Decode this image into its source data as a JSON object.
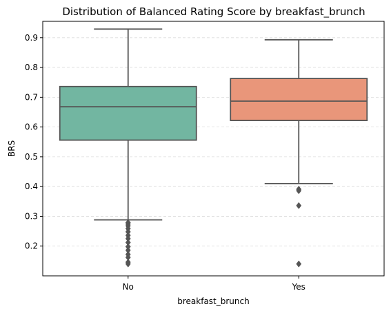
{
  "chart_data": {
    "type": "box",
    "title": "Distribution of Balanced Rating Score by breakfast_brunch",
    "xlabel": "breakfast_brunch",
    "ylabel": "BRS",
    "ylim": [
      0.1,
      0.955
    ],
    "yticks": [
      "0.2",
      "0.3",
      "0.4",
      "0.5",
      "0.6",
      "0.7",
      "0.8",
      "0.9"
    ],
    "grid": "y-dashed",
    "categories": [
      {
        "label": "No",
        "color": "#72b6a1",
        "whisker_low": 0.288,
        "q1": 0.556,
        "median": 0.668,
        "q3": 0.736,
        "whisker_high": 0.929,
        "outliers": [
          0.279,
          0.274,
          0.268,
          0.259,
          0.248,
          0.236,
          0.225,
          0.212,
          0.198,
          0.186,
          0.172,
          0.162,
          0.146,
          0.14
        ]
      },
      {
        "label": "Yes",
        "color": "#e9967a",
        "whisker_low": 0.41,
        "q1": 0.622,
        "median": 0.687,
        "q3": 0.763,
        "whisker_high": 0.893,
        "outliers": [
          0.391,
          0.386,
          0.336,
          0.14
        ]
      }
    ]
  }
}
